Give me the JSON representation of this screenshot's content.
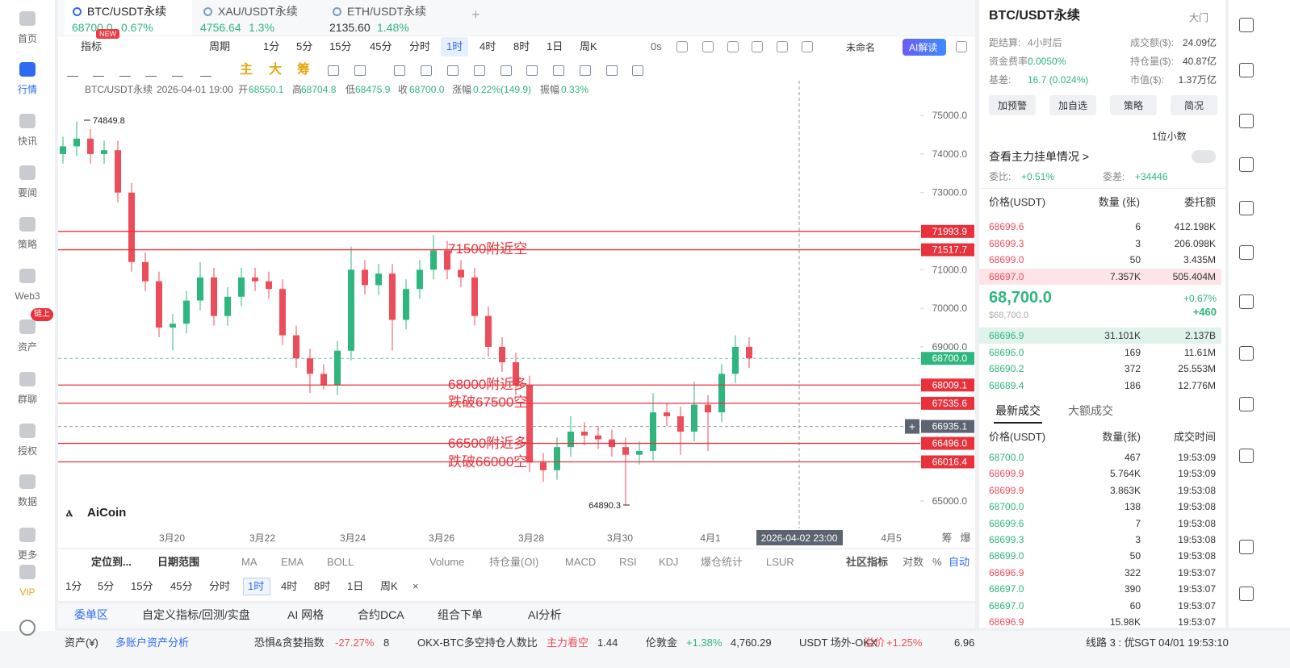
{
  "sidebar": [
    "首页",
    "行情",
    "快讯",
    "要闻",
    "策略",
    "Web3",
    "资产",
    "群聊",
    "授权",
    "数据",
    "更多",
    "VIP"
  ],
  "sidebar_badge": "链上",
  "tabs": [
    {
      "name": "BTC/USDT永续",
      "price": "68700.0",
      "change": "0.67%",
      "badge": "NEW"
    },
    {
      "name": "XAU/USDT永续",
      "price": "4756.64",
      "change": "1.3%"
    },
    {
      "name": "ETH/USDT永续",
      "price": "2135.60",
      "change": "1.48%"
    }
  ],
  "toolbar": {
    "indicator": "指标",
    "period": "周期",
    "intervals": [
      "1分",
      "5分",
      "15分",
      "45分",
      "分时",
      "1时",
      "4时",
      "8时",
      "1日",
      "周K"
    ],
    "countdown": "0s",
    "layout_name": "未命名",
    "ai": "AI解读"
  },
  "draw_tools": [
    "主",
    "大",
    "筹"
  ],
  "ohlc_line": {
    "symbol": "BTC/USDT永续",
    "time": "2026-04-01 19:00",
    "open_label": "开",
    "open": "68550.1",
    "high_label": "高",
    "high": "68704.8",
    "low_label": "低",
    "low": "68475.9",
    "close_label": "收",
    "close": "68700.0",
    "change_label": "涨幅",
    "change": "0.22%(149.9)",
    "amp_label": "振幅",
    "amp": "0.33%"
  },
  "chart_data": {
    "type": "candlestick",
    "candles": [
      [
        74000,
        74450,
        73750,
        74200
      ],
      [
        74200,
        74849.8,
        73950,
        74400
      ],
      [
        74400,
        74650,
        73750,
        74000
      ],
      [
        74000,
        74350,
        73750,
        74100
      ],
      [
        74100,
        74350,
        72750,
        73000
      ],
      [
        73000,
        73250,
        70950,
        71200
      ],
      [
        71200,
        71450,
        70450,
        70700
      ],
      [
        70700,
        70950,
        69250,
        69500
      ],
      [
        69500,
        69850,
        68900,
        69600
      ],
      [
        69600,
        70450,
        69350,
        70200
      ],
      [
        70200,
        71200,
        69950,
        70800
      ],
      [
        70800,
        71050,
        69550,
        69800
      ],
      [
        69800,
        70550,
        69550,
        70300
      ],
      [
        70300,
        71050,
        70050,
        70800
      ],
      [
        70800,
        71050,
        70450,
        70700
      ],
      [
        70700,
        70950,
        70250,
        70500
      ],
      [
        70500,
        70750,
        69050,
        69300
      ],
      [
        69300,
        69550,
        68450,
        68700
      ],
      [
        68700,
        68950,
        67800,
        68300
      ],
      [
        68300,
        68550,
        67900,
        68000
      ],
      [
        68000,
        69150,
        67750,
        68900
      ],
      [
        68900,
        71600,
        68650,
        71000
      ],
      [
        71000,
        71250,
        70350,
        70600
      ],
      [
        70600,
        71150,
        70350,
        70900
      ],
      [
        70900,
        71150,
        68900,
        69700
      ],
      [
        69700,
        70750,
        69450,
        70500
      ],
      [
        70500,
        71250,
        70250,
        71000
      ],
      [
        71000,
        71900,
        70750,
        71500
      ],
      [
        71500,
        71750,
        70750,
        71000
      ],
      [
        71000,
        71250,
        70550,
        70800
      ],
      [
        70800,
        71050,
        69550,
        69800
      ],
      [
        69800,
        70050,
        68750,
        69000
      ],
      [
        69000,
        69250,
        68350,
        68600
      ],
      [
        68600,
        68850,
        67750,
        68000
      ],
      [
        68000,
        68250,
        65750,
        66000
      ],
      [
        66000,
        66250,
        65500,
        65800
      ],
      [
        65800,
        66650,
        65550,
        66400
      ],
      [
        66400,
        67200,
        66150,
        66800
      ],
      [
        66800,
        67050,
        66450,
        66700
      ],
      [
        66700,
        66950,
        66350,
        66600
      ],
      [
        66600,
        66850,
        66150,
        66400
      ],
      [
        66400,
        66650,
        64890.3,
        66200
      ],
      [
        66200,
        66550,
        65950,
        66300
      ],
      [
        66300,
        67800,
        66050,
        67300
      ],
      [
        67300,
        67550,
        66950,
        67200
      ],
      [
        67200,
        67450,
        66200,
        66800
      ],
      [
        66800,
        68100,
        66550,
        67500
      ],
      [
        67500,
        67750,
        66300,
        67300
      ],
      [
        67300,
        68550,
        67050,
        68300
      ],
      [
        68300,
        69300,
        68050,
        69000
      ],
      [
        69000,
        69250,
        68450,
        68700
      ]
    ],
    "up_color": "#2fb67e",
    "down_color": "#ec4d5a",
    "ylim": [
      64290,
      75380
    ],
    "yticks": [
      {
        "value": 65000,
        "label": "65000.0"
      },
      {
        "value": 66000,
        "label": "66000.0"
      },
      {
        "value": 67000,
        "label": "67000.0"
      },
      {
        "value": 68000,
        "label": "68000.0"
      },
      {
        "value": 69000,
        "label": "69000.0"
      },
      {
        "value": 70000,
        "label": "70000.0"
      },
      {
        "value": 71000,
        "label": "71000.0"
      },
      {
        "value": 72000,
        "label": "72000.0"
      },
      {
        "value": 73000,
        "label": "73000.0"
      },
      {
        "value": 74000,
        "label": "74000.0"
      },
      {
        "value": 75000,
        "label": "75000.0"
      }
    ],
    "levels": [
      71993.9,
      71517.7,
      68009.1,
      67535.6,
      {
        "value": 66496,
        "label": "66496.0"
      },
      66016.4
    ],
    "level_color": "#e8313b",
    "last_price": {
      "value": 68700,
      "label": "68700.0"
    },
    "crosshair": 66935.1,
    "crosshair_time": "2026-04-02 23:00",
    "annotations": [
      "71500附近空",
      "68000附近多",
      "跌破67500空",
      "66500附近多",
      "跌破66000空"
    ],
    "xticks": [
      "3月20",
      "3月22",
      "3月24",
      "3月26",
      "3月28",
      "3月30",
      "4月1",
      "4月5"
    ],
    "watermark": "AiCoin",
    "axis_extra": [
      "筹",
      "爆"
    ]
  },
  "indicator_bar": {
    "locate": "定位到...",
    "date_range": "日期范围",
    "items": [
      "MA",
      "EMA",
      "BOLL",
      "Volume",
      "持仓量(OI)",
      "MACD",
      "RSI",
      "KDJ",
      "爆仓统计",
      "LSUR"
    ],
    "community": "社区指标",
    "right": [
      "对数",
      "%",
      "自动"
    ],
    "close": "×"
  },
  "bottom_tabs": [
    "委单区",
    "自定义指标/回测/实盘",
    "AI 网格",
    "合约DCA",
    "组合下单",
    "AI分析"
  ],
  "footer": [
    "资产(¥)",
    "多账户资产分析",
    "恐惧&贪婪指数",
    "-27.27%",
    "8",
    "OKX-BTC多空持仓人数比",
    "主力看空",
    "1.44",
    "伦敦金",
    "+1.38%",
    "4,760.29",
    "USDT 场外-OKX",
    "溢价",
    "+1.25%",
    "6.96",
    "线路 3 : 优",
    "SGT 04/01 19:53:10"
  ],
  "panel": {
    "symbol": "BTC/USDT永续",
    "link": "大门",
    "stats": [
      [
        "距结算:",
        "4小时后"
      ],
      [
        "成交额($):",
        "24.09亿"
      ],
      [
        "资金费率:",
        "0.0050%"
      ],
      [
        "持仓量($):",
        "40.87亿"
      ],
      [
        "基差:",
        "16.7 (0.024%)"
      ],
      [
        "市值($):",
        "1.37万亿"
      ]
    ],
    "buttons": [
      "加预警",
      "加自选",
      "策略",
      "简况"
    ],
    "depth_setting": "1位小数",
    "main_orders": "查看主力挂单情况 >",
    "ratio": {
      "label": "委比:",
      "value": "+0.51%",
      "diff_label": "委差:",
      "diff": "+34446"
    },
    "book_headers": [
      "价格(USDT)",
      "数量 (张)",
      "委托额"
    ],
    "asks": [
      [
        "68699.6",
        "6",
        "412.198K"
      ],
      [
        "68699.3",
        "3",
        "206.098K"
      ],
      [
        "68699.0",
        "50",
        "3.435M"
      ],
      [
        "68697.0",
        "7.357K",
        "505.404M"
      ]
    ],
    "mid": {
      "price": "68,700.0",
      "usd": "$68,700.0",
      "change": "+0.67%",
      "diff": "+460"
    },
    "bids": [
      [
        "68696.9",
        "31.101K",
        "2.137B"
      ],
      [
        "68696.0",
        "169",
        "11.61M"
      ],
      [
        "68690.2",
        "372",
        "25.553M"
      ],
      [
        "68689.4",
        "186",
        "12.776M"
      ]
    ],
    "trade_tabs": [
      "最新成交",
      "大额成交"
    ],
    "trade_headers": [
      "价格(USDT)",
      "数量(张)",
      "成交时间"
    ],
    "trades": [
      [
        "68700.0",
        "467",
        "19:53:09"
      ],
      [
        "68699.9",
        "5.764K",
        "19:53:09"
      ],
      [
        "68699.9",
        "3.863K",
        "19:53:08"
      ],
      [
        "68700.0",
        "138",
        "19:53:08"
      ],
      [
        "68699.6",
        "7",
        "19:53:08"
      ],
      [
        "68699.3",
        "3",
        "19:53:08"
      ],
      [
        "68699.0",
        "50",
        "19:53:08"
      ],
      [
        "68696.9",
        "322",
        "19:53:07"
      ],
      [
        "68697.0",
        "390",
        "19:53:07"
      ],
      [
        "68697.0",
        "60",
        "19:53:07"
      ],
      [
        "68696.9",
        "15.98K",
        "19:53:07"
      ]
    ],
    "trade_colors": [
      "#2fb67e",
      "#ec4d5a",
      "#ec4d5a",
      "#2fb67e",
      "#2fb67e",
      "#2fb67e",
      "#2fb67e",
      "#ec4d5a",
      "#2fb67e",
      "#2fb67e",
      "#ec4d5a"
    ]
  }
}
